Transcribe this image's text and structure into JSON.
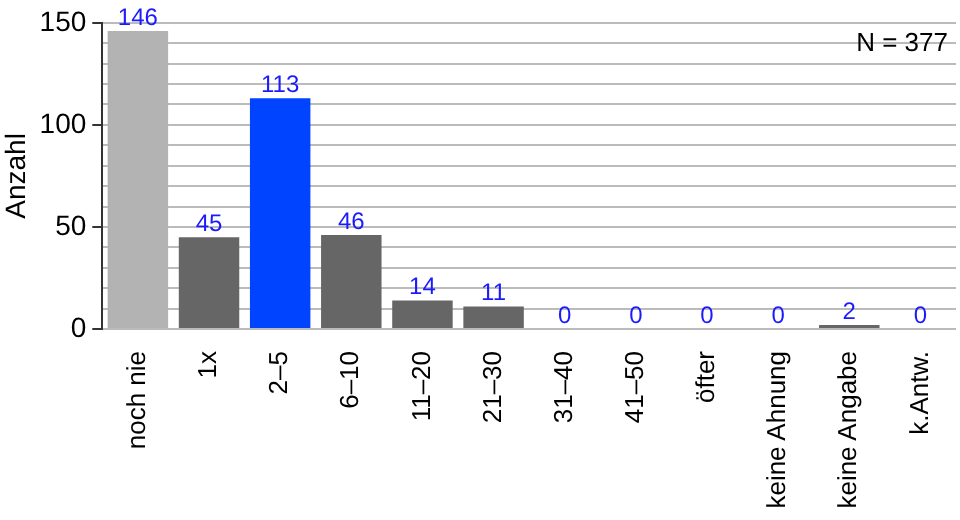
{
  "chart_data": {
    "type": "bar",
    "ylabel": "Anzahl",
    "categories": [
      "noch nie",
      "1x",
      "2–5",
      "6–10",
      "11–20",
      "21–30",
      "31–40",
      "41–50",
      "öfter",
      "keine Ahnung",
      "keine Angabe",
      "k.Antw."
    ],
    "values": [
      146,
      45,
      113,
      46,
      14,
      11,
      0,
      0,
      0,
      0,
      2,
      0
    ],
    "colors": [
      "#b3b3b3",
      "#666666",
      "#0044ff",
      "#666666",
      "#666666",
      "#666666",
      "#666666",
      "#666666",
      "#666666",
      "#666666",
      "#666666",
      "#666666"
    ],
    "ylim": [
      0,
      150
    ],
    "yticks": [
      0,
      {
        "value": 10,
        "label": null
      },
      {
        "value": 20,
        "label": null
      },
      {
        "value": 30,
        "label": null
      },
      {
        "value": 40,
        "label": null
      },
      50,
      {
        "value": 60,
        "label": null
      },
      {
        "value": 70,
        "label": null
      },
      {
        "value": 80,
        "label": null
      },
      {
        "value": 90,
        "label": null
      },
      100,
      {
        "value": 110,
        "label": null
      },
      {
        "value": 120,
        "label": null
      },
      {
        "value": 130,
        "label": null
      },
      {
        "value": 140,
        "label": null
      },
      150
    ],
    "grid": "y",
    "data_labels": true,
    "annotations": [
      "N = 377"
    ]
  }
}
